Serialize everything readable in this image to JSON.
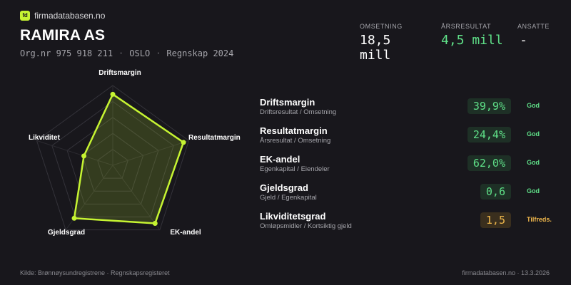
{
  "brand": {
    "logo_text": "fd",
    "name": "firmadatabasen.no",
    "logo_color": "#c6f432"
  },
  "company": {
    "name": "RAMIRA AS",
    "orgnr": "Org.nr 975 918 211",
    "city": "OSLO",
    "year": "Regnskap 2024",
    "separator": "·"
  },
  "stats": [
    {
      "label": "OMSETNING",
      "value": "18,5 mill",
      "color": "#ffffff"
    },
    {
      "label": "ÅRSRESULTAT",
      "value": "4,5 mill",
      "color": "#5fe088"
    },
    {
      "label": "ANSATTE",
      "value": "-",
      "color": "#ffffff"
    }
  ],
  "radar": {
    "axes": [
      "Driftsmargin",
      "Resultatmargin",
      "EK-andel",
      "Gjeldsgrad",
      "Likviditet"
    ],
    "scores": [
      0.89,
      0.93,
      0.9,
      0.82,
      0.38
    ],
    "line_color": "#c6f432"
  },
  "metrics": [
    {
      "name": "Driftsmargin",
      "desc": "Driftsresultat / Omsetning",
      "value": "39,9%",
      "status": "God",
      "level": "good"
    },
    {
      "name": "Resultatmargin",
      "desc": "Årsresultat / Omsetning",
      "value": "24,4%",
      "status": "God",
      "level": "good"
    },
    {
      "name": "EK-andel",
      "desc": "Egenkapital / Eiendeler",
      "value": "62,0%",
      "status": "God",
      "level": "good"
    },
    {
      "name": "Gjeldsgrad",
      "desc": "Gjeld / Egenkapital",
      "value": "0,6",
      "status": "God",
      "level": "good"
    },
    {
      "name": "Likviditetsgrad",
      "desc": "Omløpsmidler / Kortsiktig gjeld",
      "value": "1,5",
      "status": "Tilfreds.",
      "level": "ok"
    }
  ],
  "footer": {
    "source": "Kilde: Brønnøysundregistrene · Regnskapsregisteret",
    "site_date": "firmadatabasen.no · 13.3.2026"
  }
}
